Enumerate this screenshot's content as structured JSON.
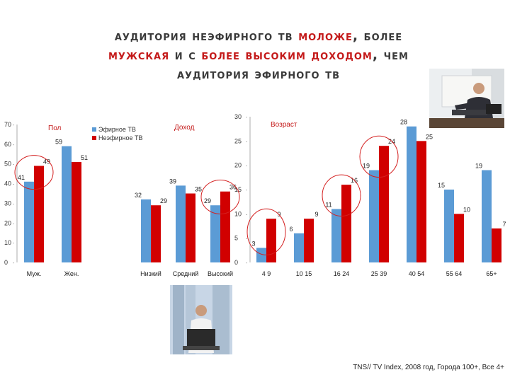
{
  "title": {
    "line1_a": "Аудитория неэфирного ТВ ",
    "line1_hl": "моложе",
    "line1_b": ", более",
    "line2_hl": "мужская",
    "line2_a": " и с ",
    "line2_hl2": "более высоким доходом",
    "line2_b": ", чем",
    "line3": "аудитория эфирного ТВ"
  },
  "source": "TNS// TV Index, 2008 год, Города 100+, Все 4+",
  "colors": {
    "series1": "#5b9bd5",
    "series2": "#d10000",
    "section_title": "#c41a1a",
    "circle": "#d42020"
  },
  "chart_data": [
    {
      "type": "bar",
      "title": "Пол",
      "categories": [
        "Муж.",
        "Жен."
      ],
      "series": [
        {
          "name": "Эфирное ТВ",
          "values": [
            41,
            59
          ]
        },
        {
          "name": "Неэфирное ТВ",
          "values": [
            49,
            51
          ]
        }
      ],
      "ylim": [
        0,
        70
      ],
      "yticks": [
        0,
        10,
        20,
        30,
        40,
        50,
        60,
        70
      ],
      "legend": "top-right",
      "highlighted_categories": [
        "Муж."
      ]
    },
    {
      "type": "bar",
      "title": "Доход",
      "categories": [
        "Низкий",
        "Средний",
        "Высокий"
      ],
      "series": [
        {
          "name": "Эфирное ТВ",
          "values": [
            32,
            39,
            29
          ]
        },
        {
          "name": "Неэфирное ТВ",
          "values": [
            29,
            35,
            36
          ]
        }
      ],
      "ylim": [
        0,
        70
      ],
      "highlighted_categories": [
        "Высокий"
      ]
    },
    {
      "type": "bar",
      "title": "Возраст",
      "categories": [
        "4 9",
        "10 15",
        "16 24",
        "25 39",
        "40 54",
        "55 64",
        "65+"
      ],
      "series": [
        {
          "name": "Эфирное ТВ",
          "values": [
            3,
            6,
            11,
            19,
            28,
            15,
            19
          ]
        },
        {
          "name": "Неэфирное ТВ",
          "values": [
            9,
            9,
            16,
            24,
            25,
            10,
            7
          ]
        }
      ],
      "ylim": [
        0,
        30
      ],
      "yticks": [
        0,
        5,
        10,
        15,
        20,
        25,
        30
      ],
      "highlighted_categories": [
        "4 9",
        "16 24",
        "25 39"
      ]
    }
  ]
}
